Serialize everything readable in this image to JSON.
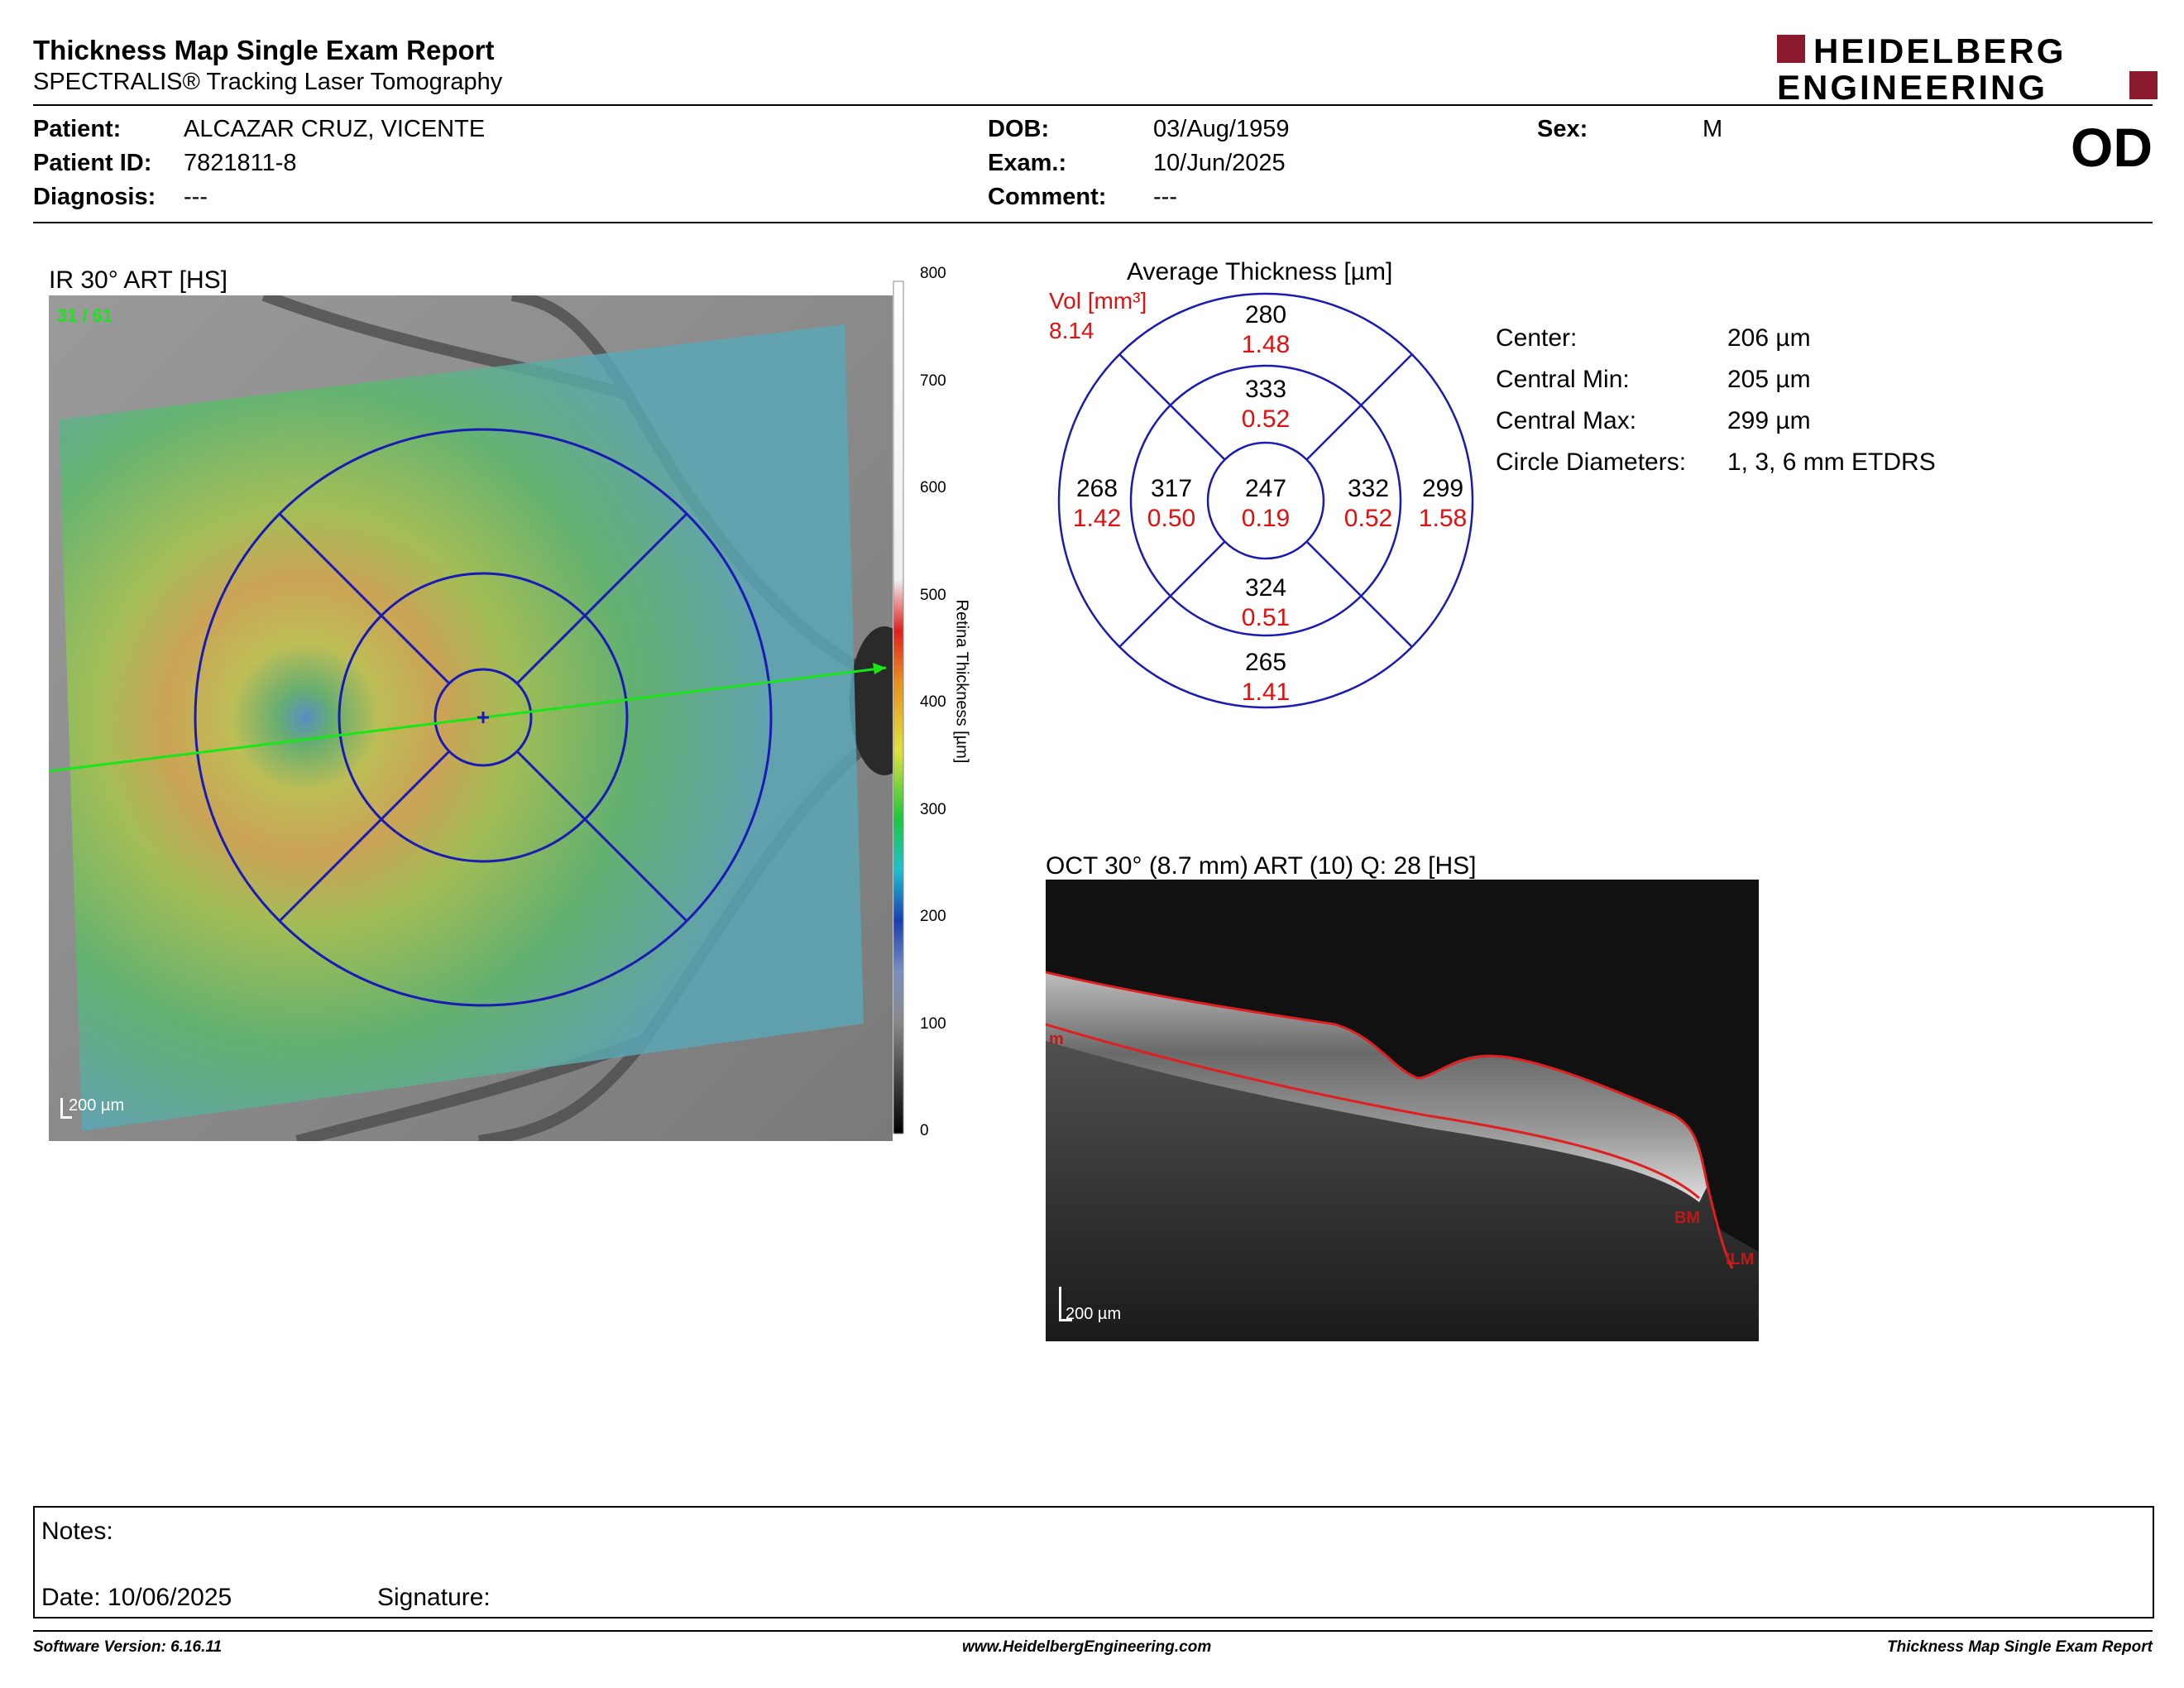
{
  "header": {
    "title": "Thickness Map Single Exam Report",
    "subtitle": "SPECTRALIS® Tracking Laser Tomography",
    "logo_line1": "HEIDELBERG",
    "logo_line2": "ENGINEERING",
    "eye": "OD"
  },
  "patient": {
    "patient_label": "Patient:",
    "patient_value": "ALCAZAR CRUZ, VICENTE",
    "id_label": "Patient ID:",
    "id_value": "7821811-8",
    "diagnosis_label": "Diagnosis:",
    "diagnosis_value": "---",
    "dob_label": "DOB:",
    "dob_value": "03/Aug/1959",
    "exam_label": "Exam.:",
    "exam_value": "10/Jun/2025",
    "comment_label": "Comment:",
    "comment_value": "---",
    "sex_label": "Sex:",
    "sex_value": "M"
  },
  "ir_image": {
    "title": "IR 30° ART [HS]",
    "frame_label": "31 / 61",
    "scale_label": "200 µm",
    "colorbar_ticks": [
      "800",
      "700",
      "600",
      "500",
      "400",
      "300",
      "200",
      "100",
      "0"
    ],
    "colorbar_label": "Retina  Thickness [µm]"
  },
  "etdrs": {
    "title": "Average Thickness [µm]",
    "vol_label": "Vol [mm³]",
    "vol_total": "8.14",
    "center": {
      "thickness": "247",
      "volume": "0.19"
    },
    "inner_superior": {
      "thickness": "333",
      "volume": "0.52"
    },
    "inner_inferior": {
      "thickness": "324",
      "volume": "0.51"
    },
    "inner_temporal": {
      "thickness": "317",
      "volume": "0.50"
    },
    "inner_nasal": {
      "thickness": "332",
      "volume": "0.52"
    },
    "outer_superior": {
      "thickness": "280",
      "volume": "1.48"
    },
    "outer_inferior": {
      "thickness": "265",
      "volume": "1.41"
    },
    "outer_temporal": {
      "thickness": "268",
      "volume": "1.42"
    },
    "outer_nasal": {
      "thickness": "299",
      "volume": "1.58"
    }
  },
  "stats": {
    "center_label": "Center:",
    "center_value": "206 µm",
    "min_label": "Central Min:",
    "min_value": "205 µm",
    "max_label": "Central Max:",
    "max_value": "299 µm",
    "diam_label": "Circle Diameters:",
    "diam_value": "1, 3, 6 mm ETDRS"
  },
  "oct": {
    "title": "OCT 30° (8.7 mm) ART (10) Q: 28 [HS]",
    "label_bm": "BM",
    "label_ilm": "ILM",
    "label_left": "m",
    "scale_label": "200 µm"
  },
  "notes": {
    "notes_label": "Notes:",
    "date_label": "Date: 10/06/2025",
    "signature_label": "Signature:"
  },
  "footer": {
    "software": "Software Version: 6.16.11",
    "website": "www.HeidelbergEngineering.com",
    "report_name": "Thickness Map Single Exam Report"
  },
  "colors": {
    "logo_red": "#8b1a2e",
    "grid_blue": "#1a1ab4",
    "volume_red": "#e01010",
    "scan_green": "#19e619",
    "segmentation_red": "#e02020"
  }
}
